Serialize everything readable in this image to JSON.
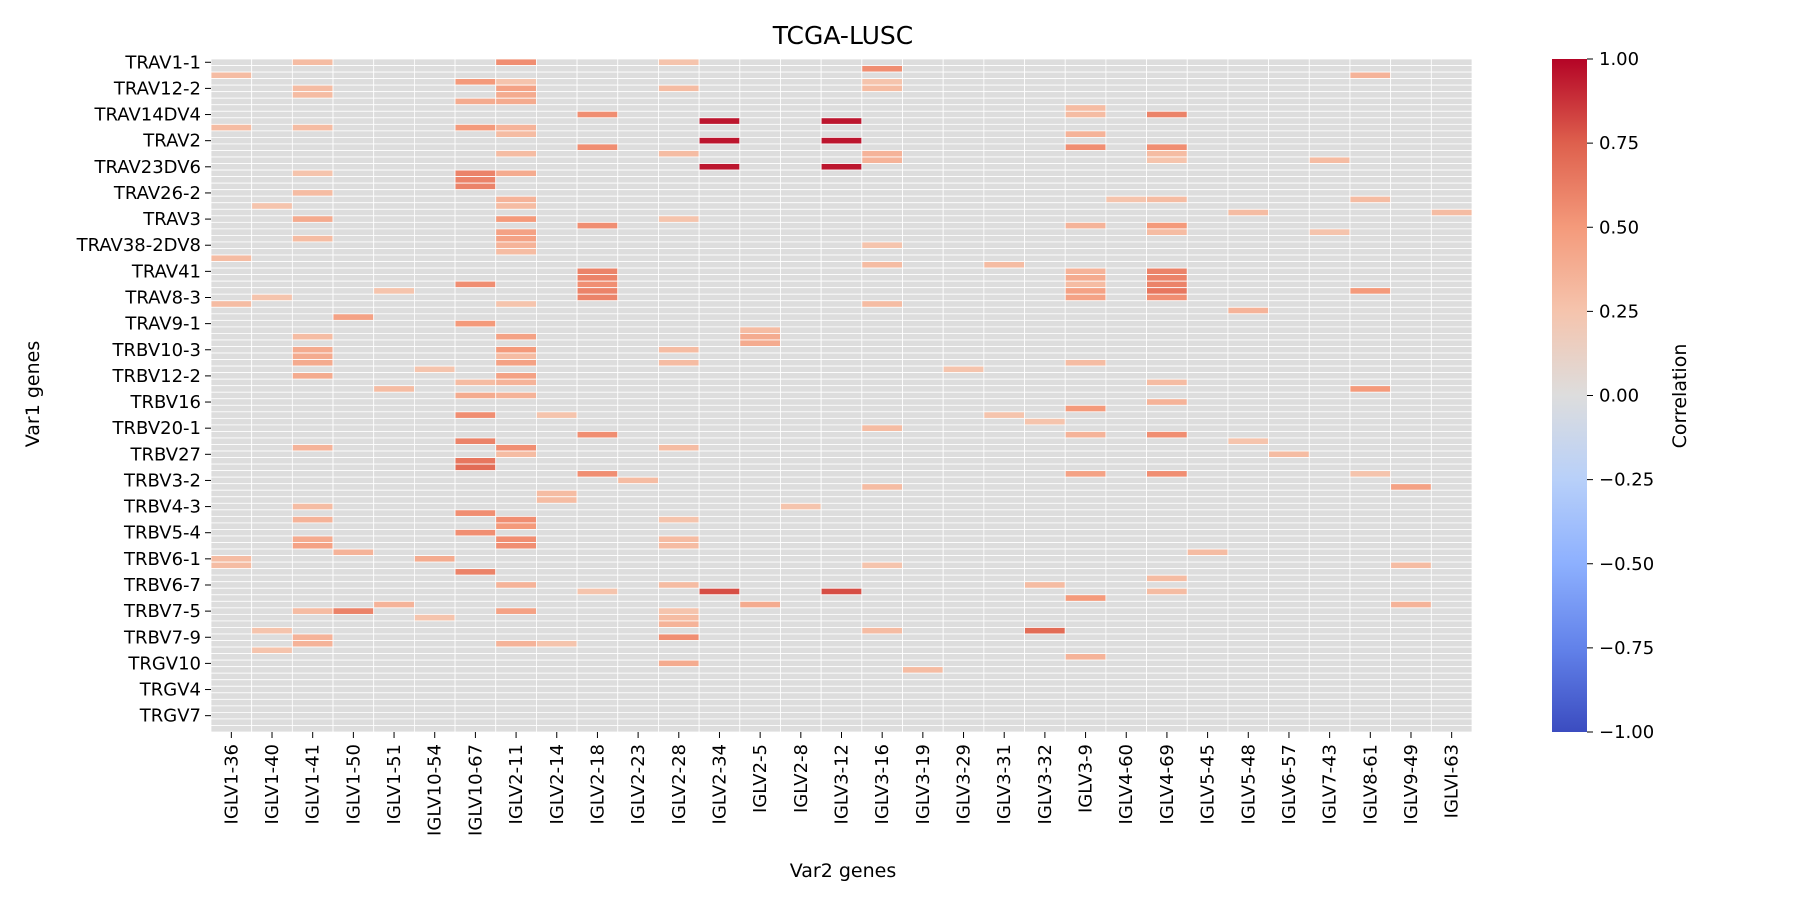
{
  "chart_data": {
    "type": "heatmap",
    "title": "TCGA-LUSC",
    "xlabel": "Var2 genes",
    "ylabel": "Var1 genes",
    "x_categories": [
      "IGLV1-36",
      "IGLV1-40",
      "IGLV1-41",
      "IGLV1-50",
      "IGLV1-51",
      "IGLV10-54",
      "IGLV10-67",
      "IGLV2-11",
      "IGLV2-14",
      "IGLV2-18",
      "IGLV2-23",
      "IGLV2-28",
      "IGLV2-34",
      "IGLV2-5",
      "IGLV2-8",
      "IGLV3-12",
      "IGLV3-16",
      "IGLV3-19",
      "IGLV3-29",
      "IGLV3-31",
      "IGLV3-32",
      "IGLV3-9",
      "IGLV4-60",
      "IGLV4-69",
      "IGLV5-45",
      "IGLV5-48",
      "IGLV6-57",
      "IGLV7-43",
      "IGLV8-61",
      "IGLV9-49",
      "IGLVI-63"
    ],
    "y_tick_labels": [
      "TRAV1-1",
      "TRAV12-2",
      "TRAV14DV4",
      "TRAV2",
      "TRAV23DV6",
      "TRAV26-2",
      "TRAV3",
      "TRAV38-2DV8",
      "TRAV41",
      "TRAV8-3",
      "TRAV9-1",
      "TRBV10-3",
      "TRBV12-2",
      "TRBV16",
      "TRBV20-1",
      "TRBV27",
      "TRBV3-2",
      "TRBV4-3",
      "TRBV5-4",
      "TRBV6-1",
      "TRBV6-7",
      "TRBV7-5",
      "TRBV7-9",
      "TRGV10",
      "TRGV4",
      "TRGV7"
    ],
    "y_tick_rows": [
      0,
      4,
      8,
      12,
      16,
      20,
      24,
      28,
      32,
      36,
      40,
      44,
      48,
      52,
      56,
      60,
      64,
      68,
      72,
      76,
      80,
      84,
      88,
      92,
      96,
      100
    ],
    "n_rows": 103,
    "background_value": 0.0,
    "nonzero_cells": [
      [
        0,
        2,
        0.3
      ],
      [
        0,
        7,
        0.55
      ],
      [
        0,
        11,
        0.25
      ],
      [
        1,
        16,
        0.55
      ],
      [
        2,
        0,
        0.3
      ],
      [
        2,
        28,
        0.35
      ],
      [
        3,
        6,
        0.5
      ],
      [
        3,
        7,
        0.25
      ],
      [
        3,
        16,
        0.25
      ],
      [
        4,
        2,
        0.3
      ],
      [
        4,
        7,
        0.45
      ],
      [
        4,
        11,
        0.3
      ],
      [
        4,
        16,
        0.3
      ],
      [
        5,
        2,
        0.3
      ],
      [
        5,
        7,
        0.4
      ],
      [
        6,
        6,
        0.4
      ],
      [
        6,
        7,
        0.4
      ],
      [
        7,
        21,
        0.3
      ],
      [
        8,
        9,
        0.55
      ],
      [
        8,
        21,
        0.3
      ],
      [
        8,
        23,
        0.6
      ],
      [
        9,
        12,
        0.95
      ],
      [
        9,
        15,
        0.95
      ],
      [
        10,
        0,
        0.3
      ],
      [
        10,
        2,
        0.3
      ],
      [
        10,
        6,
        0.5
      ],
      [
        10,
        7,
        0.35
      ],
      [
        11,
        7,
        0.3
      ],
      [
        11,
        21,
        0.35
      ],
      [
        12,
        12,
        0.95
      ],
      [
        12,
        15,
        0.95
      ],
      [
        13,
        9,
        0.55
      ],
      [
        13,
        21,
        0.55
      ],
      [
        13,
        23,
        0.55
      ],
      [
        14,
        7,
        0.3
      ],
      [
        14,
        11,
        0.3
      ],
      [
        14,
        16,
        0.35
      ],
      [
        14,
        23,
        0.3
      ],
      [
        15,
        16,
        0.35
      ],
      [
        15,
        23,
        0.25
      ],
      [
        15,
        27,
        0.3
      ],
      [
        16,
        12,
        0.95
      ],
      [
        16,
        15,
        0.95
      ],
      [
        17,
        2,
        0.25
      ],
      [
        17,
        6,
        0.6
      ],
      [
        17,
        7,
        0.4
      ],
      [
        18,
        6,
        0.6
      ],
      [
        19,
        6,
        0.6
      ],
      [
        20,
        2,
        0.3
      ],
      [
        21,
        7,
        0.35
      ],
      [
        21,
        22,
        0.25
      ],
      [
        21,
        23,
        0.3
      ],
      [
        21,
        28,
        0.3
      ],
      [
        22,
        1,
        0.25
      ],
      [
        22,
        7,
        0.3
      ],
      [
        23,
        25,
        0.3
      ],
      [
        23,
        30,
        0.3
      ],
      [
        24,
        2,
        0.4
      ],
      [
        24,
        7,
        0.5
      ],
      [
        24,
        11,
        0.25
      ],
      [
        25,
        9,
        0.55
      ],
      [
        25,
        21,
        0.35
      ],
      [
        25,
        23,
        0.5
      ],
      [
        26,
        7,
        0.45
      ],
      [
        26,
        23,
        0.3
      ],
      [
        26,
        27,
        0.25
      ],
      [
        27,
        2,
        0.3
      ],
      [
        27,
        7,
        0.45
      ],
      [
        28,
        7,
        0.35
      ],
      [
        28,
        16,
        0.25
      ],
      [
        29,
        7,
        0.3
      ],
      [
        30,
        0,
        0.3
      ],
      [
        31,
        16,
        0.3
      ],
      [
        31,
        19,
        0.3
      ],
      [
        32,
        9,
        0.6
      ],
      [
        32,
        21,
        0.35
      ],
      [
        32,
        23,
        0.6
      ],
      [
        33,
        9,
        0.6
      ],
      [
        33,
        21,
        0.4
      ],
      [
        33,
        23,
        0.6
      ],
      [
        34,
        6,
        0.55
      ],
      [
        34,
        9,
        0.55
      ],
      [
        34,
        21,
        0.3
      ],
      [
        34,
        23,
        0.6
      ],
      [
        35,
        4,
        0.25
      ],
      [
        35,
        9,
        0.6
      ],
      [
        35,
        21,
        0.45
      ],
      [
        35,
        23,
        0.65
      ],
      [
        35,
        28,
        0.5
      ],
      [
        36,
        1,
        0.25
      ],
      [
        36,
        9,
        0.6
      ],
      [
        36,
        21,
        0.45
      ],
      [
        36,
        23,
        0.55
      ],
      [
        37,
        0,
        0.3
      ],
      [
        37,
        7,
        0.25
      ],
      [
        37,
        16,
        0.3
      ],
      [
        38,
        25,
        0.35
      ],
      [
        39,
        3,
        0.45
      ],
      [
        40,
        6,
        0.5
      ],
      [
        41,
        13,
        0.3
      ],
      [
        42,
        2,
        0.3
      ],
      [
        42,
        7,
        0.45
      ],
      [
        42,
        13,
        0.4
      ],
      [
        43,
        13,
        0.4
      ],
      [
        44,
        2,
        0.4
      ],
      [
        44,
        7,
        0.5
      ],
      [
        44,
        11,
        0.3
      ],
      [
        45,
        2,
        0.4
      ],
      [
        45,
        7,
        0.3
      ],
      [
        46,
        2,
        0.4
      ],
      [
        46,
        7,
        0.45
      ],
      [
        46,
        11,
        0.3
      ],
      [
        46,
        21,
        0.3
      ],
      [
        47,
        5,
        0.25
      ],
      [
        47,
        18,
        0.25
      ],
      [
        48,
        2,
        0.4
      ],
      [
        48,
        7,
        0.45
      ],
      [
        49,
        6,
        0.3
      ],
      [
        49,
        7,
        0.35
      ],
      [
        49,
        23,
        0.3
      ],
      [
        50,
        4,
        0.3
      ],
      [
        50,
        28,
        0.5
      ],
      [
        51,
        6,
        0.4
      ],
      [
        51,
        7,
        0.35
      ],
      [
        52,
        23,
        0.35
      ],
      [
        53,
        21,
        0.5
      ],
      [
        54,
        6,
        0.55
      ],
      [
        54,
        8,
        0.25
      ],
      [
        54,
        19,
        0.25
      ],
      [
        55,
        20,
        0.25
      ],
      [
        56,
        16,
        0.3
      ],
      [
        57,
        9,
        0.55
      ],
      [
        57,
        21,
        0.35
      ],
      [
        57,
        23,
        0.55
      ],
      [
        58,
        6,
        0.6
      ],
      [
        58,
        25,
        0.25
      ],
      [
        59,
        2,
        0.35
      ],
      [
        59,
        7,
        0.55
      ],
      [
        59,
        11,
        0.3
      ],
      [
        60,
        7,
        0.3
      ],
      [
        60,
        26,
        0.3
      ],
      [
        61,
        6,
        0.65
      ],
      [
        62,
        6,
        0.7
      ],
      [
        63,
        9,
        0.55
      ],
      [
        63,
        21,
        0.45
      ],
      [
        63,
        23,
        0.55
      ],
      [
        63,
        28,
        0.25
      ],
      [
        64,
        10,
        0.3
      ],
      [
        65,
        16,
        0.3
      ],
      [
        65,
        29,
        0.45
      ],
      [
        66,
        8,
        0.3
      ],
      [
        67,
        8,
        0.3
      ],
      [
        68,
        2,
        0.3
      ],
      [
        68,
        14,
        0.25
      ],
      [
        69,
        6,
        0.55
      ],
      [
        70,
        2,
        0.35
      ],
      [
        70,
        7,
        0.55
      ],
      [
        70,
        11,
        0.25
      ],
      [
        71,
        7,
        0.5
      ],
      [
        72,
        6,
        0.55
      ],
      [
        73,
        2,
        0.4
      ],
      [
        73,
        7,
        0.55
      ],
      [
        73,
        11,
        0.3
      ],
      [
        74,
        2,
        0.45
      ],
      [
        74,
        7,
        0.55
      ],
      [
        74,
        11,
        0.3
      ],
      [
        75,
        3,
        0.35
      ],
      [
        75,
        24,
        0.3
      ],
      [
        76,
        0,
        0.3
      ],
      [
        76,
        5,
        0.4
      ],
      [
        77,
        0,
        0.3
      ],
      [
        77,
        16,
        0.25
      ],
      [
        77,
        29,
        0.3
      ],
      [
        78,
        6,
        0.6
      ],
      [
        79,
        23,
        0.3
      ],
      [
        80,
        7,
        0.35
      ],
      [
        80,
        11,
        0.3
      ],
      [
        80,
        20,
        0.3
      ],
      [
        81,
        9,
        0.25
      ],
      [
        81,
        12,
        0.8
      ],
      [
        81,
        15,
        0.8
      ],
      [
        81,
        23,
        0.3
      ],
      [
        82,
        21,
        0.5
      ],
      [
        83,
        4,
        0.35
      ],
      [
        83,
        13,
        0.4
      ],
      [
        83,
        29,
        0.35
      ],
      [
        84,
        2,
        0.3
      ],
      [
        84,
        3,
        0.6
      ],
      [
        84,
        7,
        0.45
      ],
      [
        84,
        11,
        0.25
      ],
      [
        85,
        5,
        0.25
      ],
      [
        85,
        11,
        0.3
      ],
      [
        86,
        11,
        0.35
      ],
      [
        87,
        1,
        0.25
      ],
      [
        87,
        16,
        0.3
      ],
      [
        87,
        20,
        0.7
      ],
      [
        88,
        2,
        0.35
      ],
      [
        88,
        11,
        0.55
      ],
      [
        89,
        2,
        0.35
      ],
      [
        89,
        7,
        0.35
      ],
      [
        89,
        8,
        0.25
      ],
      [
        90,
        1,
        0.25
      ],
      [
        91,
        21,
        0.35
      ],
      [
        92,
        11,
        0.4
      ],
      [
        93,
        17,
        0.3
      ]
    ],
    "colorbar": {
      "label": "Correlation",
      "vmin": -1.0,
      "vmax": 1.0,
      "tick_labels": [
        "1.00",
        "0.75",
        "0.50",
        "0.25",
        "0.00",
        "−0.25",
        "−0.50",
        "−0.75",
        "−1.00"
      ],
      "tick_values": [
        1.0,
        0.75,
        0.5,
        0.25,
        0.0,
        -0.25,
        -0.5,
        -0.75,
        -1.0
      ]
    },
    "colormap": "coolwarm",
    "grid": "white cell separators"
  }
}
